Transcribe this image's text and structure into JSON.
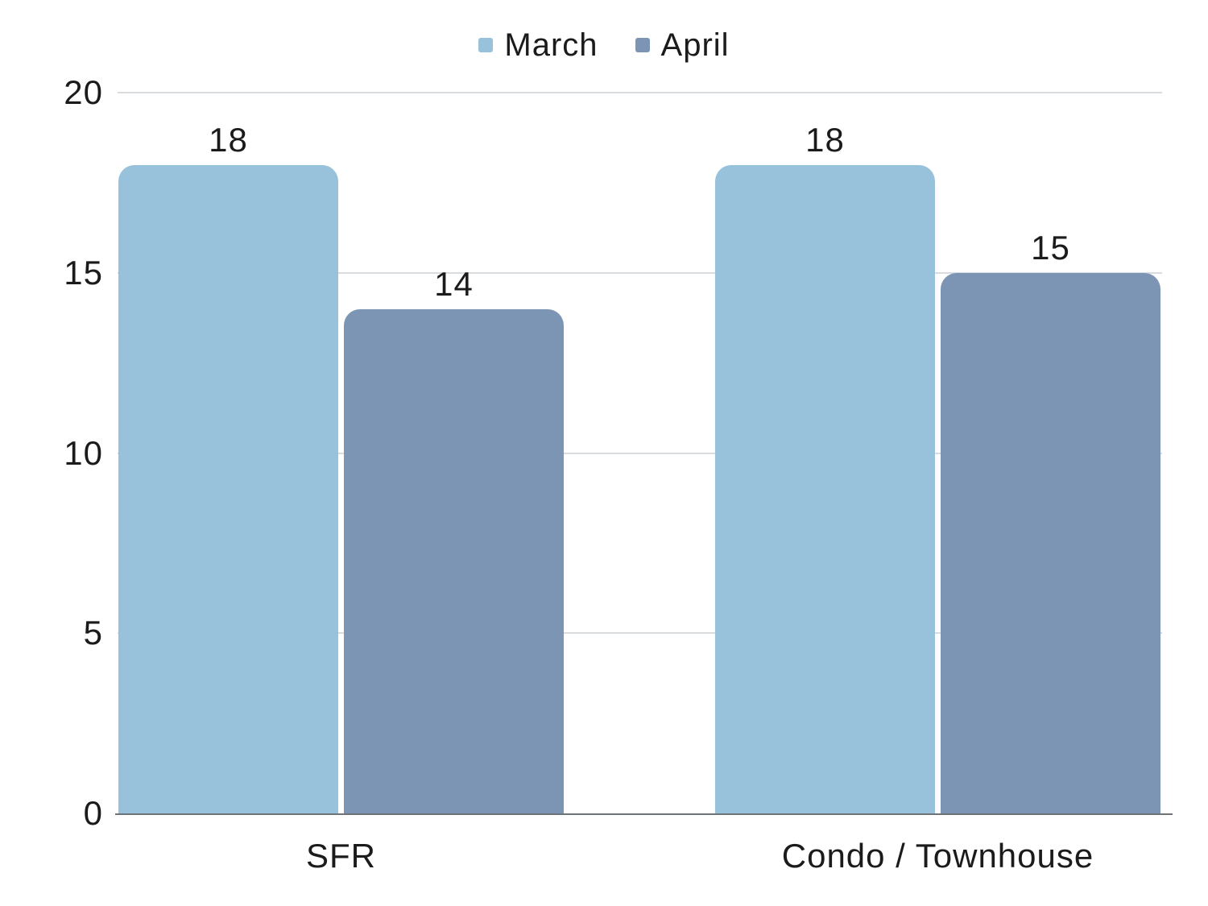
{
  "chart_data": {
    "type": "bar",
    "title": "",
    "xlabel": "",
    "ylabel": "",
    "categories": [
      "SFR",
      "Condo / Townhouse"
    ],
    "series": [
      {
        "name": "March",
        "color": "#98C2DB",
        "values": [
          18,
          18
        ]
      },
      {
        "name": "April",
        "color": "#7D95B4",
        "values": [
          14,
          15
        ]
      }
    ],
    "data_labels": [
      {
        "category": "SFR",
        "March": 18,
        "April": 14
      },
      {
        "category": "Condo / Townhouse",
        "March": 18,
        "April": 15
      }
    ],
    "ylim": [
      0,
      20
    ],
    "yticks": [
      0,
      5,
      10,
      15,
      20
    ],
    "grid": true,
    "legend_position": "top-center",
    "colors": {
      "march_series": "#98C2DB",
      "april_series": "#7D95B4",
      "gridline": "#D9DCDE",
      "baseline": "#6E7377",
      "text": "#1B1B1B",
      "background": "#FFFFFF"
    }
  }
}
